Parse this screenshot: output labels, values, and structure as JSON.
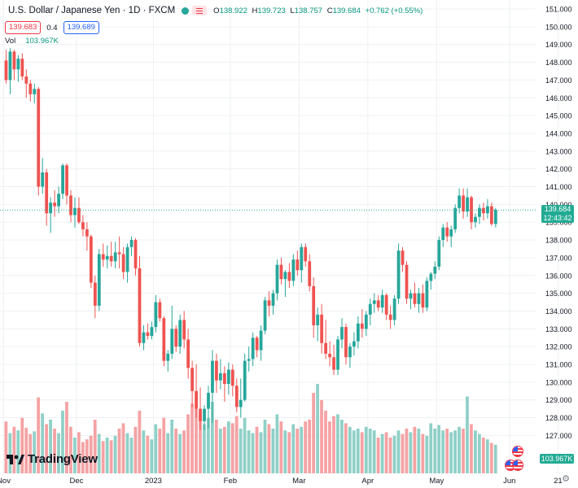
{
  "header": {
    "symbol_title": "U.S. Dollar / Japanese Yen · 1D · FXCM",
    "open_label": "O",
    "open": "138.922",
    "high_label": "H",
    "high": "139.723",
    "low_label": "L",
    "low": "138.757",
    "close_label": "C",
    "close": "139.684",
    "change": "+0.762 (+0.55%)",
    "sell_price": "139.683",
    "spread": "0.4",
    "buy_price": "139.689",
    "volume_label": "Vol",
    "volume_value": "103.967K"
  },
  "last_price_tag": {
    "price": "139.684",
    "countdown": "12:43:42"
  },
  "volume_tag": "103.967K",
  "brand": "TradingView",
  "colors": {
    "up": "#26a69a",
    "down": "#ef5350",
    "up_vol": "#8fd0c7",
    "down_vol": "#f5a2a4",
    "grid": "#eef0f3",
    "last_line": "#22ab94"
  },
  "chart_data": {
    "type": "candlestick",
    "title": "U.S. Dollar / Japanese Yen · 1D · FXCM",
    "series_name": "Vol",
    "ylim": [
      126,
      151.5
    ],
    "y_ticks": [
      "151.000",
      "150.000",
      "149.000",
      "148.000",
      "147.000",
      "146.000",
      "145.000",
      "144.000",
      "143.000",
      "142.000",
      "141.000",
      "140.000",
      "139.000",
      "138.000",
      "137.000",
      "136.000",
      "135.000",
      "134.000",
      "133.000",
      "132.000",
      "131.000",
      "130.000",
      "129.000",
      "128.000",
      "127.000"
    ],
    "x_ticks": [
      "Nov",
      "Dec",
      "2023",
      "Feb",
      "Mar",
      "Apr",
      "May",
      "Jun",
      "21"
    ],
    "last_price": 139.684,
    "candles": [
      [
        148.1,
        148.7,
        146.8,
        147.0
      ],
      [
        147.0,
        148.8,
        146.2,
        148.6
      ],
      [
        148.6,
        148.7,
        147.0,
        147.6
      ],
      [
        147.6,
        148.4,
        146.9,
        148.2
      ],
      [
        148.2,
        148.5,
        147.0,
        147.2
      ],
      [
        147.2,
        147.6,
        146.0,
        146.8
      ],
      [
        146.8,
        147.0,
        145.8,
        146.2
      ],
      [
        146.2,
        146.8,
        145.7,
        146.5
      ],
      [
        146.5,
        146.6,
        140.5,
        141.0
      ],
      [
        141.0,
        142.6,
        140.6,
        141.8
      ],
      [
        141.8,
        142.0,
        138.8,
        139.5
      ],
      [
        139.5,
        140.4,
        138.4,
        140.1
      ],
      [
        140.1,
        140.8,
        139.3,
        139.9
      ],
      [
        139.9,
        141.0,
        139.5,
        140.6
      ],
      [
        140.6,
        142.3,
        140.3,
        142.2
      ],
      [
        142.2,
        142.3,
        140.0,
        140.5
      ],
      [
        140.5,
        140.8,
        139.0,
        139.4
      ],
      [
        139.4,
        140.4,
        138.7,
        139.8
      ],
      [
        139.8,
        140.4,
        138.9,
        139.0
      ],
      [
        139.0,
        139.4,
        138.2,
        138.6
      ],
      [
        138.6,
        139.0,
        137.4,
        138.2
      ],
      [
        138.2,
        138.3,
        135.3,
        135.6
      ],
      [
        135.6,
        136.0,
        133.6,
        134.3
      ],
      [
        134.3,
        137.5,
        134.0,
        137.2
      ],
      [
        137.2,
        137.8,
        136.5,
        136.9
      ],
      [
        136.9,
        137.7,
        136.4,
        137.1
      ],
      [
        137.1,
        137.9,
        136.5,
        136.8
      ],
      [
        136.8,
        137.9,
        136.4,
        137.3
      ],
      [
        137.3,
        138.2,
        136.4,
        137.2
      ],
      [
        137.2,
        137.6,
        135.8,
        136.2
      ],
      [
        136.2,
        137.8,
        135.6,
        137.6
      ],
      [
        137.6,
        138.2,
        137.1,
        138.0
      ],
      [
        138.0,
        138.1,
        136.0,
        136.4
      ],
      [
        136.4,
        137.1,
        132.0,
        132.2
      ],
      [
        132.2,
        133.2,
        131.8,
        132.8
      ],
      [
        132.8,
        133.3,
        132.4,
        132.6
      ],
      [
        132.6,
        133.4,
        132.4,
        133.1
      ],
      [
        133.1,
        134.9,
        132.8,
        134.5
      ],
      [
        134.5,
        134.7,
        133.4,
        133.6
      ],
      [
        133.6,
        133.7,
        130.9,
        131.2
      ],
      [
        131.2,
        131.8,
        130.6,
        131.6
      ],
      [
        131.6,
        134.3,
        131.3,
        133.0
      ],
      [
        133.0,
        133.2,
        131.7,
        132.0
      ],
      [
        132.0,
        133.8,
        131.6,
        133.5
      ],
      [
        133.5,
        134.0,
        131.9,
        132.4
      ],
      [
        132.4,
        133.0,
        130.2,
        130.8
      ],
      [
        130.8,
        131.2,
        128.6,
        129.5
      ],
      [
        129.5,
        131.0,
        128.0,
        128.5
      ],
      [
        128.5,
        129.7,
        127.3,
        127.8
      ],
      [
        127.8,
        128.7,
        127.3,
        128.5
      ],
      [
        128.5,
        129.8,
        127.4,
        129.4
      ],
      [
        129.4,
        131.8,
        127.7,
        131.2
      ],
      [
        131.2,
        131.6,
        129.4,
        130.1
      ],
      [
        130.1,
        131.3,
        129.6,
        130.5
      ],
      [
        130.5,
        130.9,
        128.9,
        129.9
      ],
      [
        129.9,
        131.1,
        129.3,
        130.7
      ],
      [
        130.7,
        131.0,
        129.2,
        129.8
      ],
      [
        129.8,
        130.2,
        128.3,
        128.6
      ],
      [
        128.6,
        130.2,
        128.0,
        129.0
      ],
      [
        129.0,
        131.6,
        128.9,
        131.2
      ],
      [
        131.2,
        132.0,
        130.6,
        131.3
      ],
      [
        131.3,
        132.8,
        130.9,
        132.5
      ],
      [
        132.5,
        132.6,
        131.4,
        131.8
      ],
      [
        131.8,
        133.2,
        131.2,
        132.9
      ],
      [
        132.9,
        134.8,
        132.7,
        134.6
      ],
      [
        134.6,
        135.1,
        133.7,
        134.3
      ],
      [
        134.3,
        135.2,
        133.8,
        135.0
      ],
      [
        135.0,
        136.9,
        134.6,
        136.6
      ],
      [
        136.6,
        137.0,
        135.5,
        135.8
      ],
      [
        135.8,
        136.3,
        134.8,
        136.2
      ],
      [
        136.2,
        136.7,
        135.3,
        135.7
      ],
      [
        135.7,
        137.2,
        135.4,
        136.9
      ],
      [
        136.9,
        137.4,
        136.0,
        136.3
      ],
      [
        136.3,
        137.8,
        135.6,
        137.6
      ],
      [
        137.6,
        137.8,
        136.5,
        136.8
      ],
      [
        136.8,
        137.2,
        135.1,
        135.4
      ],
      [
        135.4,
        135.9,
        132.5,
        133.2
      ],
      [
        133.2,
        134.2,
        132.3,
        133.8
      ],
      [
        133.8,
        134.4,
        131.6,
        132.2
      ],
      [
        132.2,
        133.5,
        131.3,
        131.6
      ],
      [
        131.6,
        132.3,
        130.9,
        131.4
      ],
      [
        131.4,
        132.1,
        130.4,
        130.7
      ],
      [
        130.7,
        132.6,
        130.4,
        132.4
      ],
      [
        132.4,
        133.6,
        131.9,
        133.1
      ],
      [
        133.1,
        133.3,
        131.0,
        131.4
      ],
      [
        131.4,
        132.2,
        130.8,
        132.0
      ],
      [
        132.0,
        132.8,
        131.5,
        132.3
      ],
      [
        132.3,
        133.7,
        131.9,
        133.3
      ],
      [
        133.3,
        134.1,
        132.5,
        133.0
      ],
      [
        133.0,
        134.0,
        132.6,
        133.8
      ],
      [
        133.8,
        134.7,
        133.2,
        134.4
      ],
      [
        134.4,
        135.0,
        133.9,
        134.6
      ],
      [
        134.6,
        134.9,
        134.0,
        134.2
      ],
      [
        134.2,
        135.2,
        133.9,
        134.9
      ],
      [
        134.9,
        135.0,
        133.5,
        133.8
      ],
      [
        133.8,
        134.3,
        133.0,
        133.5
      ],
      [
        133.5,
        134.9,
        133.2,
        134.7
      ],
      [
        134.7,
        137.8,
        134.4,
        137.4
      ],
      [
        137.4,
        137.6,
        136.2,
        136.6
      ],
      [
        136.6,
        136.8,
        134.4,
        134.7
      ],
      [
        134.7,
        135.2,
        134.1,
        135.0
      ],
      [
        135.0,
        135.6,
        134.2,
        134.4
      ],
      [
        134.4,
        135.3,
        133.9,
        135.0
      ],
      [
        135.0,
        135.5,
        133.9,
        134.2
      ],
      [
        134.2,
        135.9,
        134.0,
        135.7
      ],
      [
        135.7,
        136.2,
        135.2,
        136.1
      ],
      [
        136.1,
        136.8,
        135.8,
        136.5
      ],
      [
        136.5,
        138.2,
        136.3,
        138.0
      ],
      [
        138.0,
        138.9,
        137.6,
        138.7
      ],
      [
        138.7,
        139.0,
        137.9,
        138.2
      ],
      [
        138.2,
        138.8,
        137.6,
        138.6
      ],
      [
        138.6,
        140.0,
        138.4,
        139.8
      ],
      [
        139.8,
        140.9,
        139.5,
        140.5
      ],
      [
        140.5,
        140.9,
        139.2,
        139.6
      ],
      [
        139.6,
        140.9,
        139.3,
        140.4
      ],
      [
        140.4,
        140.5,
        138.6,
        139.0
      ],
      [
        139.0,
        139.5,
        138.7,
        139.3
      ],
      [
        139.3,
        140.0,
        138.9,
        139.8
      ],
      [
        139.8,
        140.1,
        139.1,
        139.5
      ],
      [
        139.5,
        140.3,
        139.2,
        139.9
      ],
      [
        139.9,
        140.1,
        138.8,
        138.9
      ],
      [
        138.9,
        139.8,
        138.7,
        139.7
      ]
    ],
    "volumes": [
      0.58,
      0.45,
      0.52,
      0.48,
      0.62,
      0.51,
      0.44,
      0.47,
      0.85,
      0.67,
      0.55,
      0.6,
      0.5,
      0.45,
      0.7,
      0.8,
      0.52,
      0.4,
      0.46,
      0.35,
      0.38,
      0.42,
      0.6,
      0.44,
      0.36,
      0.4,
      0.37,
      0.42,
      0.5,
      0.56,
      0.45,
      0.4,
      0.52,
      0.7,
      0.48,
      0.42,
      0.38,
      0.55,
      0.5,
      0.62,
      0.45,
      0.6,
      0.5,
      0.44,
      0.48,
      0.66,
      0.78,
      0.72,
      0.68,
      0.55,
      0.62,
      0.8,
      0.6,
      0.5,
      0.52,
      0.58,
      0.56,
      0.64,
      0.5,
      0.62,
      0.48,
      0.45,
      0.52,
      0.46,
      0.6,
      0.55,
      0.5,
      0.66,
      0.58,
      0.48,
      0.46,
      0.55,
      0.5,
      0.52,
      0.58,
      0.6,
      0.9,
      1.0,
      0.82,
      0.7,
      0.58,
      0.64,
      0.66,
      0.6,
      0.56,
      0.52,
      0.48,
      0.5,
      0.46,
      0.52,
      0.5,
      0.48,
      0.4,
      0.44,
      0.46,
      0.4,
      0.42,
      0.48,
      0.44,
      0.5,
      0.46,
      0.52,
      0.5,
      0.44,
      0.42,
      0.56,
      0.5,
      0.54,
      0.48,
      0.5,
      0.46,
      0.48,
      0.52,
      0.5,
      0.86,
      0.55,
      0.48,
      0.44,
      0.4,
      0.38,
      0.34,
      0.32
    ]
  }
}
